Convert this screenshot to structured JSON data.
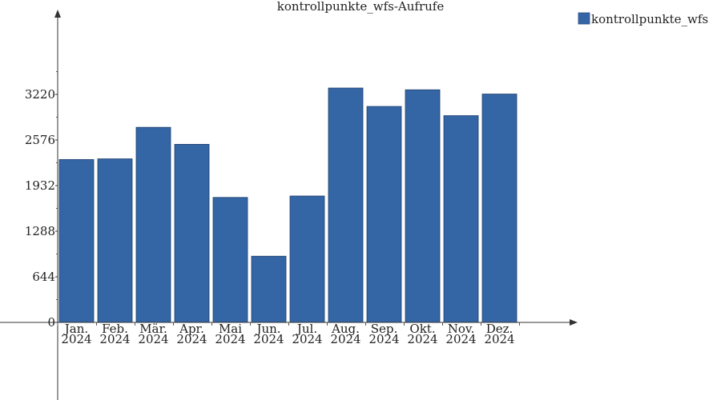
{
  "chart_data": {
    "type": "bar",
    "title": "kontrollpunkte_wfs-Aufrufe",
    "xlabel": "",
    "ylabel": "",
    "categories": [
      [
        "Jan.",
        "2024"
      ],
      [
        "Feb.",
        "2024"
      ],
      [
        "Mär.",
        "2024"
      ],
      [
        "Apr.",
        "2024"
      ],
      [
        "Mai",
        "2024"
      ],
      [
        "Jun.",
        "2024"
      ],
      [
        "Jul.",
        "2024"
      ],
      [
        "Aug.",
        "2024"
      ],
      [
        "Sep.",
        "2024"
      ],
      [
        "Okt.",
        "2024"
      ],
      [
        "Nov.",
        "2024"
      ],
      [
        "Dez.",
        "2024"
      ]
    ],
    "series": [
      {
        "name": "kontrollpunkte_wfs",
        "color": "#3465a4",
        "values": [
          2300,
          2310,
          2755,
          2515,
          1765,
          935,
          1785,
          3310,
          3050,
          3285,
          2920,
          3225
        ]
      }
    ],
    "yticks": [
      "0",
      "644",
      "1288",
      "1932",
      "2576",
      "3220"
    ],
    "ylim": [
      0,
      4320
    ],
    "grid": false,
    "legend": "top-right"
  }
}
